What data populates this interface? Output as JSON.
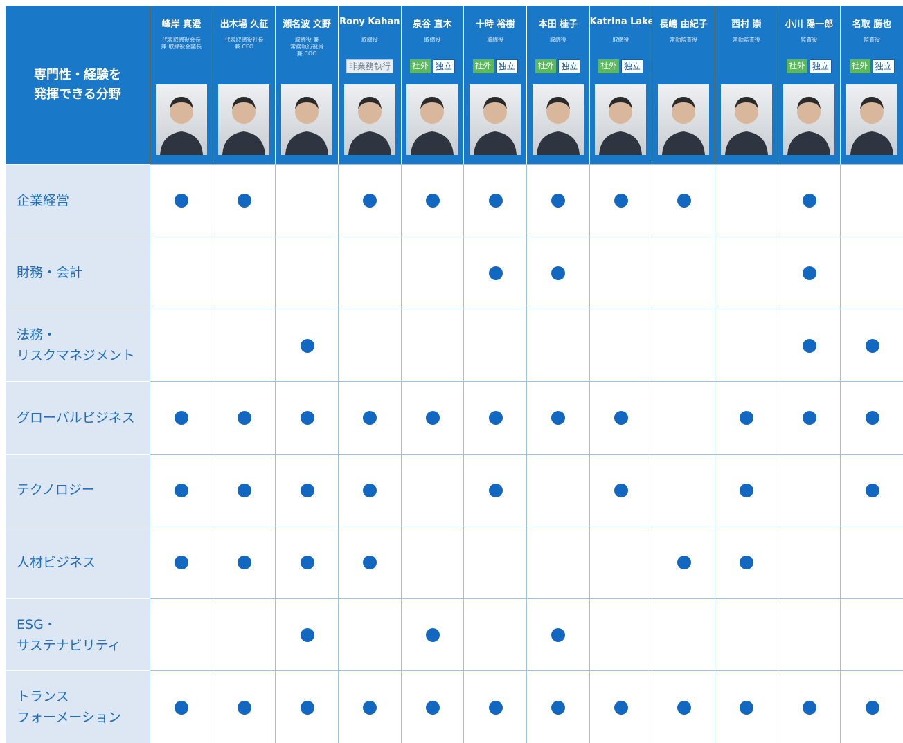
{
  "header": {
    "title": [
      "専門性・経験を",
      "発揮できる分野"
    ]
  },
  "members": [
    {
      "name": "峰岸 真澄",
      "role": [
        "代表取締役会長",
        "兼 取締役会議長"
      ],
      "badges": []
    },
    {
      "name": "出木場 久征",
      "role": [
        "代表取締役社長",
        "兼 CEO"
      ],
      "badges": []
    },
    {
      "name": "瀬名波 文野",
      "role": [
        "取締役 兼",
        "常務執行役員",
        "兼 COO"
      ],
      "badges": []
    },
    {
      "name": "Rony Kahan",
      "role": [
        "取締役"
      ],
      "badges": [
        "非業務執行"
      ]
    },
    {
      "name": "泉谷 直木",
      "role": [
        "取締役"
      ],
      "badges": [
        "社外",
        "独立"
      ]
    },
    {
      "name": "十時 裕樹",
      "role": [
        "取締役"
      ],
      "badges": [
        "社外",
        "独立"
      ]
    },
    {
      "name": "本田 桂子",
      "role": [
        "取締役"
      ],
      "badges": [
        "社外",
        "独立"
      ]
    },
    {
      "name": "Katrina Lake",
      "role": [
        "取締役"
      ],
      "badges": [
        "社外",
        "独立"
      ]
    },
    {
      "name": "長嶋 由紀子",
      "role": [
        "常勤監査役"
      ],
      "badges": []
    },
    {
      "name": "西村 崇",
      "role": [
        "常勤監査役"
      ],
      "badges": []
    },
    {
      "name": "小川 陽一郎",
      "role": [
        "監査役"
      ],
      "badges": [
        "社外",
        "独立"
      ]
    },
    {
      "name": "名取 勝也",
      "role": [
        "監査役"
      ],
      "badges": [
        "社外",
        "独立"
      ]
    }
  ],
  "rows": [
    {
      "label": [
        "企業経営"
      ],
      "cells": [
        true,
        true,
        false,
        true,
        true,
        true,
        true,
        true,
        true,
        false,
        true,
        false
      ]
    },
    {
      "label": [
        "財務・会計"
      ],
      "cells": [
        false,
        false,
        false,
        false,
        false,
        true,
        true,
        false,
        false,
        false,
        true,
        false
      ]
    },
    {
      "label": [
        "法務・",
        "リスクマネジメント"
      ],
      "cells": [
        false,
        false,
        true,
        false,
        false,
        false,
        false,
        false,
        false,
        false,
        true,
        true
      ]
    },
    {
      "label": [
        "グローバルビジネス"
      ],
      "cells": [
        true,
        true,
        true,
        true,
        true,
        true,
        true,
        true,
        false,
        true,
        true,
        true
      ]
    },
    {
      "label": [
        "テクノロジー"
      ],
      "cells": [
        true,
        true,
        true,
        true,
        false,
        true,
        false,
        true,
        false,
        true,
        false,
        true
      ]
    },
    {
      "label": [
        "人材ビジネス"
      ],
      "cells": [
        true,
        true,
        true,
        true,
        false,
        false,
        false,
        false,
        true,
        true,
        false,
        false
      ]
    },
    {
      "label": [
        "ESG・",
        "サステナビリティ"
      ],
      "cells": [
        false,
        false,
        true,
        false,
        true,
        false,
        true,
        false,
        false,
        false,
        false,
        false
      ]
    },
    {
      "label": [
        "トランス",
        "フォーメーション"
      ],
      "cells": [
        true,
        true,
        true,
        true,
        true,
        true,
        true,
        true,
        true,
        true,
        true,
        true
      ]
    }
  ]
}
